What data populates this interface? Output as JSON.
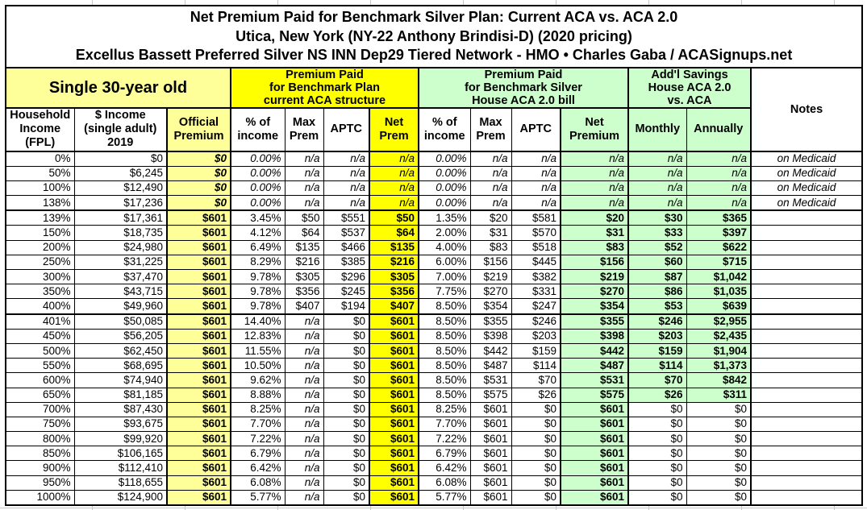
{
  "colors": {
    "light_yellow": "#FFFF99",
    "bright_yellow": "#FFFF00",
    "light_green": "#CCFFCC",
    "border": "#000000",
    "faint_gridline": "#C8C8C8"
  },
  "chart_data": {
    "type": "table",
    "title_lines": [
      "Net Premium Paid for Benchmark Silver Plan: Current ACA vs. ACA 2.0",
      "Utica, New York (NY-22 Anthony Brindisi-D) (2020 pricing)",
      "Excellus Bassett Preferred Silver NS INN Dep29 Tiered Network - HMO • Charles Gaba / ACASignups.net"
    ],
    "column_groups": [
      {
        "label": "Single 30-year old",
        "span": 3
      },
      {
        "label": "Premium Paid\nfor Benchmark Plan\ncurrent ACA structure",
        "span": 4
      },
      {
        "label": "Premium Paid\nfor Benchmark Silver\nHouse ACA 2.0 bill",
        "span": 4
      },
      {
        "label": "Add'l Savings\nHouse ACA 2.0\nvs. ACA",
        "span": 2
      },
      {
        "label": "Notes",
        "span": 1
      }
    ],
    "columns": [
      "Household\nIncome\n(FPL)",
      "$ Income\n(single adult)\n2019",
      "Official\nPremium",
      "% of\nincome",
      "Max\nPrem",
      "APTC",
      "Net\nPrem",
      "% of\nincome",
      "Max\nPrem",
      "APTC",
      "Net\nPremium",
      "Monthly",
      "Annually",
      "Notes"
    ],
    "rows": [
      {
        "style": "medicaid",
        "cells": [
          "0%",
          "$0",
          "$0",
          "0.00%",
          "n/a",
          "n/a",
          "n/a",
          "0.00%",
          "n/a",
          "n/a",
          "n/a",
          "n/a",
          "n/a",
          "on Medicaid"
        ]
      },
      {
        "style": "medicaid",
        "cells": [
          "50%",
          "$6,245",
          "$0",
          "0.00%",
          "n/a",
          "n/a",
          "n/a",
          "0.00%",
          "n/a",
          "n/a",
          "n/a",
          "n/a",
          "n/a",
          "on Medicaid"
        ]
      },
      {
        "style": "medicaid",
        "cells": [
          "100%",
          "$12,490",
          "$0",
          "0.00%",
          "n/a",
          "n/a",
          "n/a",
          "0.00%",
          "n/a",
          "n/a",
          "n/a",
          "n/a",
          "n/a",
          "on Medicaid"
        ]
      },
      {
        "style": "medicaid",
        "cells": [
          "138%",
          "$17,236",
          "$0",
          "0.00%",
          "n/a",
          "n/a",
          "n/a",
          "0.00%",
          "n/a",
          "n/a",
          "n/a",
          "n/a",
          "n/a",
          "on Medicaid"
        ]
      },
      {
        "style": "green",
        "sep": true,
        "cells": [
          "139%",
          "$17,361",
          "$601",
          "3.45%",
          "$50",
          "$551",
          "$50",
          "1.35%",
          "$20",
          "$581",
          "$20",
          "$30",
          "$365",
          ""
        ]
      },
      {
        "style": "green",
        "cells": [
          "150%",
          "$18,735",
          "$601",
          "4.12%",
          "$64",
          "$537",
          "$64",
          "2.00%",
          "$31",
          "$570",
          "$31",
          "$33",
          "$397",
          ""
        ]
      },
      {
        "style": "green",
        "cells": [
          "200%",
          "$24,980",
          "$601",
          "6.49%",
          "$135",
          "$466",
          "$135",
          "4.00%",
          "$83",
          "$518",
          "$83",
          "$52",
          "$622",
          ""
        ]
      },
      {
        "style": "green",
        "cells": [
          "250%",
          "$31,225",
          "$601",
          "8.29%",
          "$216",
          "$385",
          "$216",
          "6.00%",
          "$156",
          "$445",
          "$156",
          "$60",
          "$715",
          ""
        ]
      },
      {
        "style": "green",
        "cells": [
          "300%",
          "$37,470",
          "$601",
          "9.78%",
          "$305",
          "$296",
          "$305",
          "7.00%",
          "$219",
          "$382",
          "$219",
          "$87",
          "$1,042",
          ""
        ]
      },
      {
        "style": "green",
        "cells": [
          "350%",
          "$43,715",
          "$601",
          "9.78%",
          "$356",
          "$245",
          "$356",
          "7.75%",
          "$270",
          "$331",
          "$270",
          "$86",
          "$1,035",
          ""
        ]
      },
      {
        "style": "green",
        "cells": [
          "400%",
          "$49,960",
          "$601",
          "9.78%",
          "$407",
          "$194",
          "$407",
          "8.50%",
          "$354",
          "$247",
          "$354",
          "$53",
          "$639",
          ""
        ]
      },
      {
        "style": "green",
        "sep": true,
        "cells": [
          "401%",
          "$50,085",
          "$601",
          "14.40%",
          "n/a",
          "$0",
          "$601",
          "8.50%",
          "$355",
          "$246",
          "$355",
          "$246",
          "$2,955",
          ""
        ]
      },
      {
        "style": "green",
        "cells": [
          "450%",
          "$56,205",
          "$601",
          "12.83%",
          "n/a",
          "$0",
          "$601",
          "8.50%",
          "$398",
          "$203",
          "$398",
          "$203",
          "$2,435",
          ""
        ]
      },
      {
        "style": "green",
        "cells": [
          "500%",
          "$62,450",
          "$601",
          "11.55%",
          "n/a",
          "$0",
          "$601",
          "8.50%",
          "$442",
          "$159",
          "$442",
          "$159",
          "$1,904",
          ""
        ]
      },
      {
        "style": "green",
        "cells": [
          "550%",
          "$68,695",
          "$601",
          "10.50%",
          "n/a",
          "$0",
          "$601",
          "8.50%",
          "$487",
          "$114",
          "$487",
          "$114",
          "$1,373",
          ""
        ]
      },
      {
        "style": "green",
        "cells": [
          "600%",
          "$74,940",
          "$601",
          "9.62%",
          "n/a",
          "$0",
          "$601",
          "8.50%",
          "$531",
          "$70",
          "$531",
          "$70",
          "$842",
          ""
        ]
      },
      {
        "style": "green",
        "cells": [
          "650%",
          "$81,185",
          "$601",
          "8.88%",
          "n/a",
          "$0",
          "$601",
          "8.50%",
          "$575",
          "$26",
          "$575",
          "$26",
          "$311",
          ""
        ]
      },
      {
        "style": "plain",
        "cells": [
          "700%",
          "$87,430",
          "$601",
          "8.25%",
          "n/a",
          "$0",
          "$601",
          "8.25%",
          "$601",
          "$0",
          "$601",
          "$0",
          "$0",
          ""
        ]
      },
      {
        "style": "plain",
        "cells": [
          "750%",
          "$93,675",
          "$601",
          "7.70%",
          "n/a",
          "$0",
          "$601",
          "7.70%",
          "$601",
          "$0",
          "$601",
          "$0",
          "$0",
          ""
        ]
      },
      {
        "style": "plain",
        "cells": [
          "800%",
          "$99,920",
          "$601",
          "7.22%",
          "n/a",
          "$0",
          "$601",
          "7.22%",
          "$601",
          "$0",
          "$601",
          "$0",
          "$0",
          ""
        ]
      },
      {
        "style": "plain",
        "cells": [
          "850%",
          "$106,165",
          "$601",
          "6.79%",
          "n/a",
          "$0",
          "$601",
          "6.79%",
          "$601",
          "$0",
          "$601",
          "$0",
          "$0",
          ""
        ]
      },
      {
        "style": "plain",
        "cells": [
          "900%",
          "$112,410",
          "$601",
          "6.42%",
          "n/a",
          "$0",
          "$601",
          "6.42%",
          "$601",
          "$0",
          "$601",
          "$0",
          "$0",
          ""
        ]
      },
      {
        "style": "plain",
        "cells": [
          "950%",
          "$118,655",
          "$601",
          "6.08%",
          "n/a",
          "$0",
          "$601",
          "6.08%",
          "$601",
          "$0",
          "$601",
          "$0",
          "$0",
          ""
        ]
      },
      {
        "style": "plain",
        "cells": [
          "1000%",
          "$124,900",
          "$601",
          "5.77%",
          "n/a",
          "$0",
          "$601",
          "5.77%",
          "$601",
          "$0",
          "$601",
          "$0",
          "$0",
          ""
        ]
      }
    ]
  }
}
